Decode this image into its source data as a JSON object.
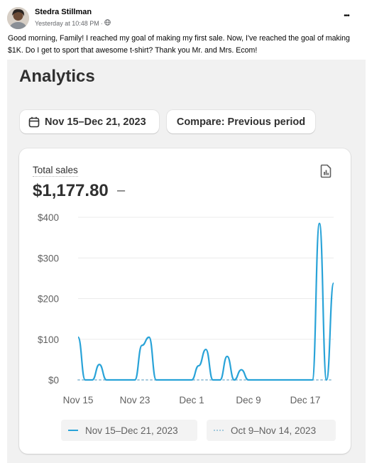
{
  "post": {
    "author": "Stedra Stillman",
    "timestamp": "Yesterday at 10:48 PM",
    "separator": "·",
    "audience_icon": "globe-icon",
    "more_icon": "more-dots-icon",
    "more_label": "•••",
    "text": "Good morning, Family! I reached my goal of making my first sale. Now, I've reached the goal of making $1K. Do I get to sport that awesome t-shirt? Thank you Mr. and Mrs. Ecom!"
  },
  "analytics": {
    "title": "Analytics",
    "date_range_icon": "calendar-icon",
    "date_range": "Nov 15–Dec 21, 2023",
    "compare": "Compare: Previous period",
    "metric_label": "Total sales",
    "metric_value": "$1,177.80",
    "metric_delta": "–",
    "report_icon": "report-icon"
  },
  "colors": {
    "primary_series": "#29a3d8",
    "comparison_series": "#a3c9dd",
    "panel_bg": "#ffffff",
    "page_bg": "#f1f1f1"
  },
  "chart_data": {
    "type": "line",
    "title": "",
    "xlabel": "",
    "ylabel": "",
    "x_ticks": [
      "Nov 15",
      "Nov 23",
      "Dec 1",
      "Dec 9",
      "Dec 17"
    ],
    "y_ticks": [
      "$0",
      "$100",
      "$200",
      "$300",
      "$400"
    ],
    "ylim": [
      0,
      400
    ],
    "grid": true,
    "legend_position": "bottom",
    "x": [
      "Nov 15",
      "Nov 16",
      "Nov 17",
      "Nov 18",
      "Nov 19",
      "Nov 20",
      "Nov 21",
      "Nov 22",
      "Nov 23",
      "Nov 24",
      "Nov 25",
      "Nov 26",
      "Nov 27",
      "Nov 28",
      "Nov 29",
      "Nov 30",
      "Dec 1",
      "Dec 2",
      "Dec 3",
      "Dec 4",
      "Dec 5",
      "Dec 6",
      "Dec 7",
      "Dec 8",
      "Dec 9",
      "Dec 10",
      "Dec 11",
      "Dec 12",
      "Dec 13",
      "Dec 14",
      "Dec 15",
      "Dec 16",
      "Dec 17",
      "Dec 18",
      "Dec 19",
      "Dec 20",
      "Dec 21"
    ],
    "series": [
      {
        "name": "Nov 15–Dec 21, 2023",
        "style": "solid",
        "values": [
          105,
          0,
          0,
          38,
          0,
          0,
          0,
          0,
          0,
          85,
          105,
          0,
          0,
          0,
          0,
          0,
          0,
          35,
          75,
          0,
          0,
          58,
          0,
          25,
          0,
          0,
          0,
          0,
          0,
          0,
          0,
          0,
          0,
          0,
          385,
          0,
          238
        ]
      },
      {
        "name": "Oct 9–Nov 14, 2023",
        "style": "dotted",
        "values": [
          0,
          0,
          0,
          0,
          0,
          0,
          0,
          0,
          0,
          0,
          0,
          0,
          0,
          0,
          0,
          0,
          0,
          0,
          0,
          0,
          0,
          0,
          0,
          0,
          0,
          0,
          0,
          0,
          0,
          0,
          0,
          0,
          0,
          0,
          0,
          0,
          0
        ]
      }
    ]
  }
}
